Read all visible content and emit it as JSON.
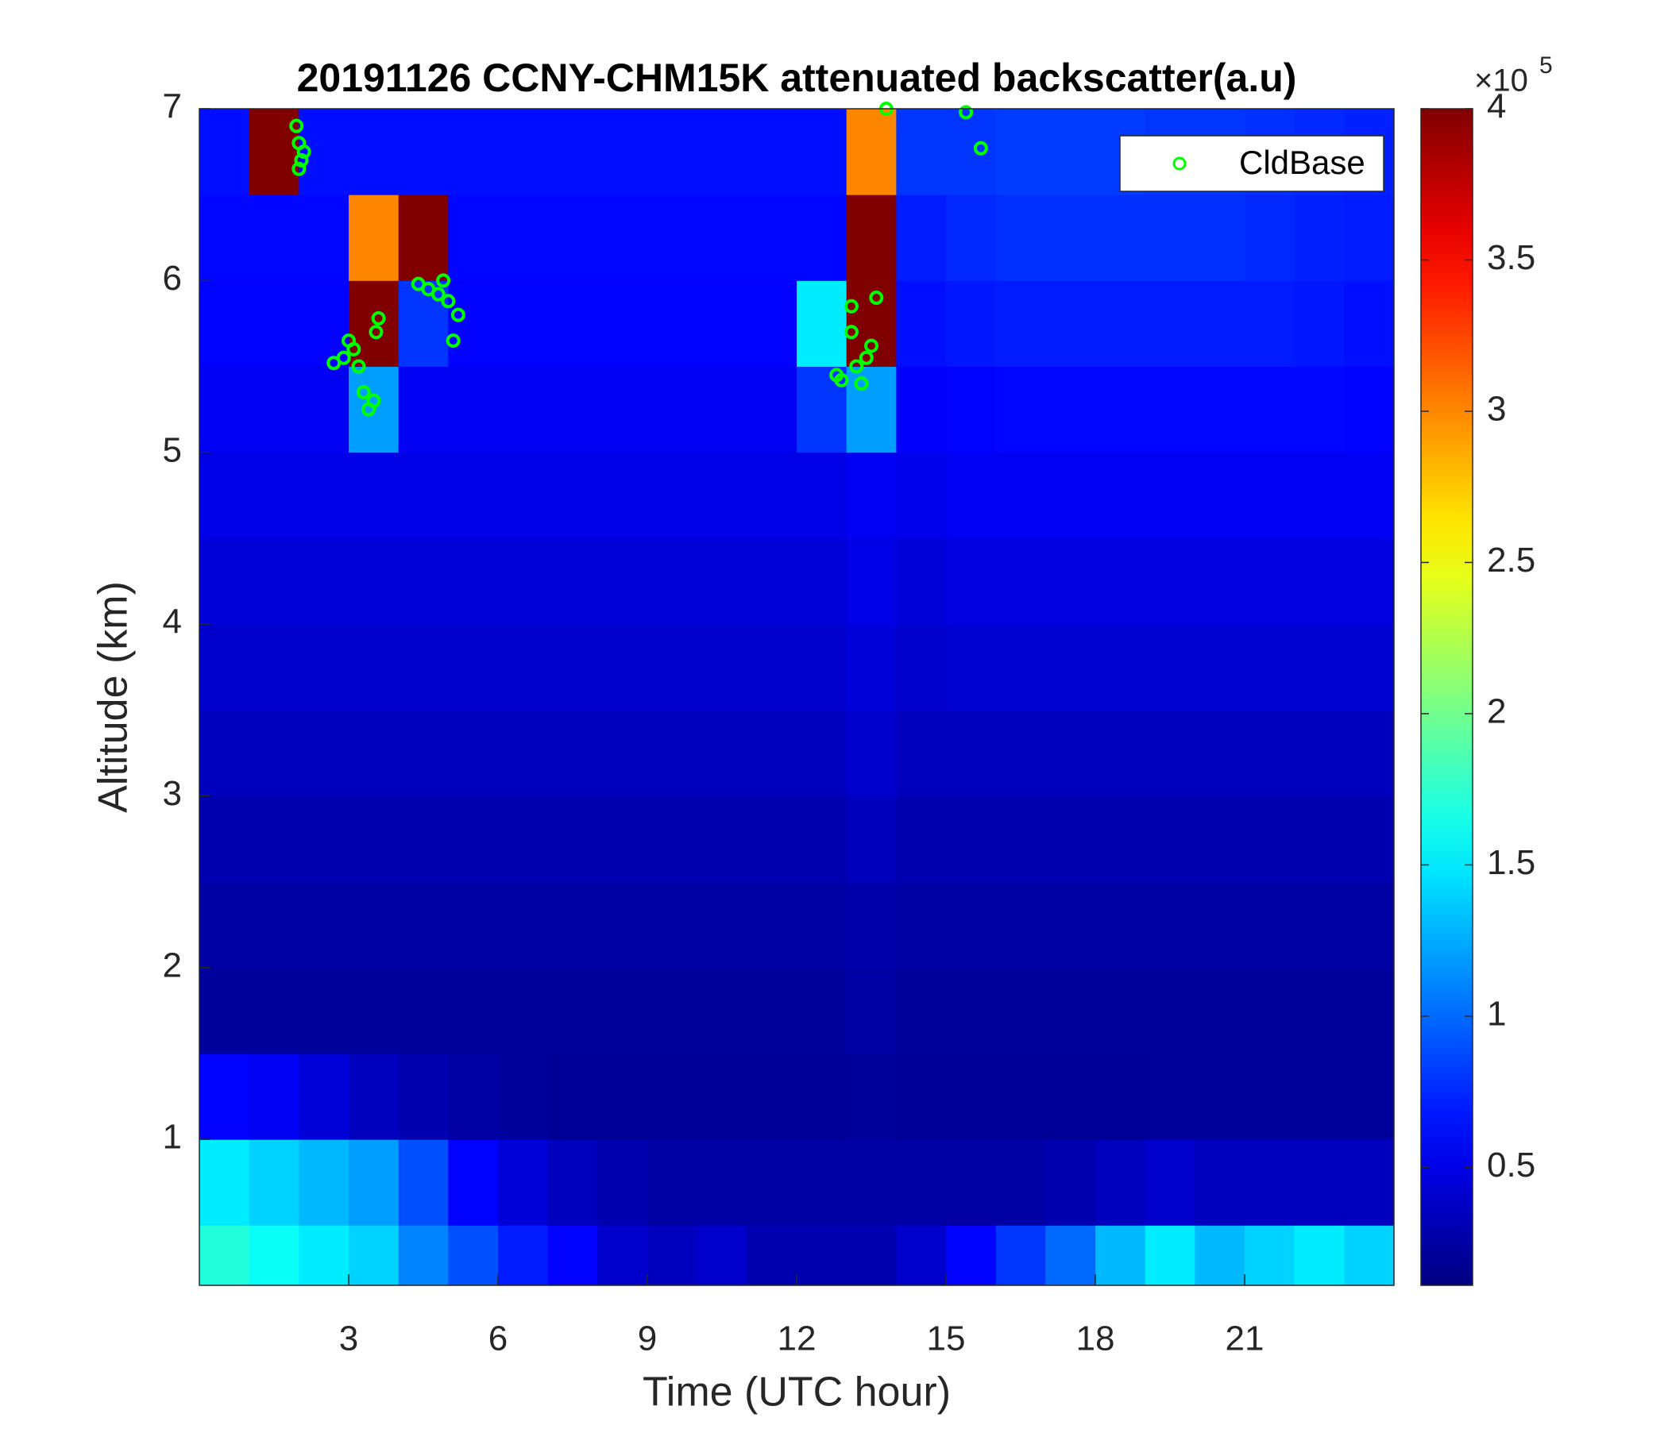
{
  "chart_data": {
    "type": "heatmap",
    "title": "20191126 CCNY-CHM15K attenuated backscatter(a.u)",
    "x_label": "Time (UTC hour)",
    "y_label": "Altitude (km)",
    "xlim": [
      0,
      24
    ],
    "ylim": [
      0.15,
      7
    ],
    "xticks": [
      3,
      6,
      9,
      12,
      15,
      18,
      21
    ],
    "yticks": [
      1,
      2,
      3,
      4,
      5,
      6,
      7
    ],
    "x_edges": [
      0,
      1,
      2,
      3,
      4,
      5,
      6,
      7,
      8,
      9,
      10,
      11,
      12,
      13,
      14,
      15,
      16,
      17,
      18,
      19,
      20,
      21,
      22,
      23,
      24
    ],
    "y_edges": [
      0.15,
      0.5,
      1,
      1.5,
      2,
      2.5,
      3,
      3.5,
      4,
      4.5,
      5,
      5.5,
      6,
      6.5,
      7
    ],
    "z": [
      [
        170000,
        160000,
        150000,
        140000,
        110000,
        90000,
        70000,
        60000,
        40000,
        35000,
        40000,
        30000,
        30000,
        30000,
        40000,
        60000,
        80000,
        100000,
        130000,
        150000,
        130000,
        140000,
        150000,
        140000
      ],
      [
        150000,
        140000,
        130000,
        120000,
        90000,
        60000,
        45000,
        35000,
        30000,
        25000,
        25000,
        25000,
        25000,
        25000,
        25000,
        25000,
        25000,
        30000,
        35000,
        40000,
        35000,
        35000,
        35000,
        35000
      ],
      [
        60000,
        55000,
        45000,
        35000,
        30000,
        25000,
        22000,
        20000,
        20000,
        20000,
        20000,
        20000,
        20000,
        22000,
        20000,
        20000,
        20000,
        20000,
        20000,
        22000,
        22000,
        22000,
        22000,
        22000
      ],
      [
        22000,
        22000,
        22000,
        22000,
        22000,
        22000,
        22000,
        22000,
        22000,
        22000,
        22000,
        22000,
        22000,
        25000,
        22000,
        22000,
        22000,
        22000,
        22000,
        22000,
        22000,
        22000,
        22000,
        22000
      ],
      [
        25000,
        25000,
        25000,
        25000,
        25000,
        25000,
        25000,
        25000,
        25000,
        25000,
        25000,
        25000,
        25000,
        28000,
        25000,
        25000,
        25000,
        25000,
        25000,
        25000,
        25000,
        25000,
        25000,
        25000
      ],
      [
        30000,
        30000,
        30000,
        30000,
        30000,
        30000,
        30000,
        30000,
        30000,
        30000,
        30000,
        30000,
        30000,
        34000,
        30000,
        30000,
        30000,
        30000,
        30000,
        30000,
        30000,
        30000,
        30000,
        30000
      ],
      [
        35000,
        35000,
        35000,
        35000,
        35000,
        35000,
        35000,
        35000,
        35000,
        35000,
        35000,
        35000,
        35000,
        40000,
        35000,
        35000,
        35000,
        35000,
        35000,
        35000,
        35000,
        35000,
        35000,
        35000
      ],
      [
        40000,
        40000,
        40000,
        40000,
        40000,
        40000,
        40000,
        40000,
        40000,
        40000,
        40000,
        40000,
        40000,
        45000,
        40000,
        42000,
        42000,
        42000,
        42000,
        42000,
        42000,
        42000,
        42000,
        42000
      ],
      [
        45000,
        45000,
        45000,
        45000,
        45000,
        45000,
        45000,
        45000,
        45000,
        45000,
        45000,
        45000,
        45000,
        50000,
        45000,
        48000,
        48000,
        48000,
        48000,
        48000,
        48000,
        48000,
        48000,
        48000
      ],
      [
        50000,
        50000,
        50000,
        50000,
        50000,
        50000,
        50000,
        50000,
        50000,
        50000,
        50000,
        50000,
        50000,
        55000,
        52000,
        55000,
        55000,
        55000,
        55000,
        55000,
        55000,
        55000,
        55000,
        55000
      ],
      [
        55000,
        55000,
        55000,
        120000,
        55000,
        55000,
        55000,
        55000,
        55000,
        55000,
        55000,
        55000,
        80000,
        120000,
        58000,
        60000,
        62000,
        62000,
        62000,
        62000,
        62000,
        62000,
        62000,
        60000
      ],
      [
        60000,
        60000,
        60000,
        400000,
        80000,
        60000,
        60000,
        60000,
        60000,
        60000,
        60000,
        60000,
        150000,
        400000,
        65000,
        68000,
        70000,
        70000,
        70000,
        70000,
        70000,
        70000,
        68000,
        65000
      ],
      [
        62000,
        62000,
        62000,
        300000,
        400000,
        62000,
        62000,
        62000,
        62000,
        62000,
        62000,
        62000,
        62000,
        400000,
        70000,
        75000,
        78000,
        78000,
        78000,
        78000,
        78000,
        75000,
        72000,
        70000
      ],
      [
        65000,
        400000,
        65000,
        65000,
        65000,
        65000,
        65000,
        65000,
        65000,
        65000,
        65000,
        65000,
        65000,
        300000,
        80000,
        80000,
        82000,
        82000,
        82000,
        80000,
        80000,
        78000,
        75000,
        72000
      ]
    ],
    "clim": [
      11000,
      400000
    ],
    "cticks": [
      {
        "value": 50000,
        "label": "0.5"
      },
      {
        "value": 100000,
        "label": "1"
      },
      {
        "value": 150000,
        "label": "1.5"
      },
      {
        "value": 200000,
        "label": "2"
      },
      {
        "value": 250000,
        "label": "2.5"
      },
      {
        "value": 300000,
        "label": "3"
      },
      {
        "value": 350000,
        "label": "3.5"
      },
      {
        "value": 400000,
        "label": "4"
      }
    ],
    "colorbar_multiplier": "×10",
    "colorbar_exponent": "5",
    "colormap": "jet",
    "legend": "upper right",
    "series": [
      {
        "name": "CldBase",
        "color": "#00ff00",
        "x": [
          1.95,
          2.0,
          2.05,
          2.1,
          2.0,
          2.7,
          2.9,
          3.0,
          3.1,
          3.2,
          3.3,
          3.4,
          3.5,
          3.55,
          3.6,
          4.4,
          4.6,
          4.8,
          5.0,
          5.1,
          5.2,
          4.9,
          12.8,
          12.9,
          13.1,
          13.2,
          13.3,
          13.4,
          13.5,
          13.6,
          13.1,
          13.8,
          15.4,
          15.7
        ],
        "y": [
          6.9,
          6.8,
          6.7,
          6.75,
          6.65,
          5.52,
          5.55,
          5.65,
          5.6,
          5.5,
          5.35,
          5.25,
          5.3,
          5.7,
          5.78,
          5.98,
          5.95,
          5.92,
          5.88,
          5.65,
          5.8,
          6.0,
          5.45,
          5.42,
          5.85,
          5.5,
          5.4,
          5.55,
          5.62,
          5.9,
          5.7,
          7.0,
          6.98,
          6.77
        ]
      }
    ]
  }
}
